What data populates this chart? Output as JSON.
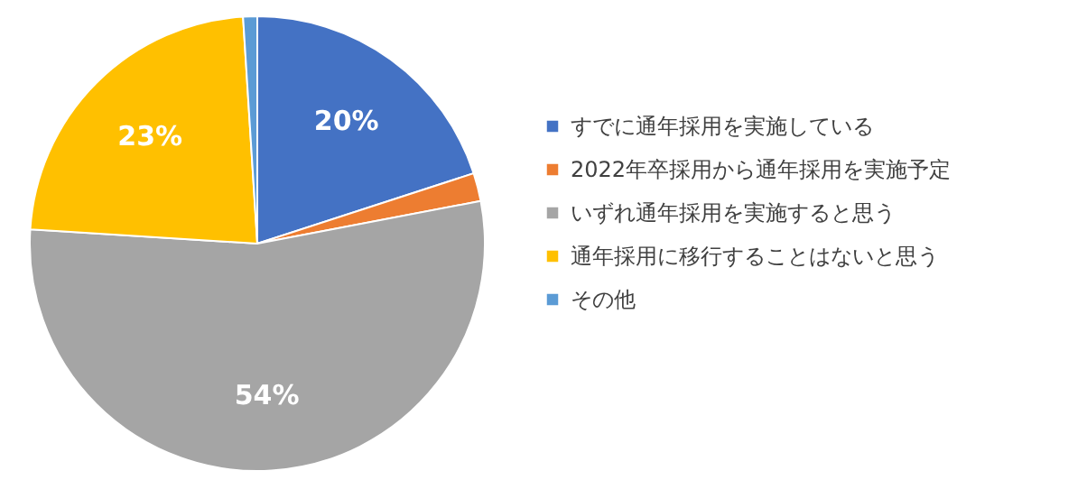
{
  "chart_data": {
    "type": "pie",
    "categories": [
      "すでに通年採用を実施している",
      "2022年卒採用から通年採用を実施予定",
      "いずれ通年採用を実施すると思う",
      "通年採用に移行することはないと思う",
      "その他"
    ],
    "values": [
      20,
      2,
      54,
      23,
      1
    ],
    "colors": [
      "#4472c4",
      "#ed7d31",
      "#a5a5a5",
      "#ffc000",
      "#5b9bd5"
    ],
    "value_labels": [
      "20%",
      null,
      "54%",
      "23%",
      null
    ],
    "legend": "right"
  }
}
